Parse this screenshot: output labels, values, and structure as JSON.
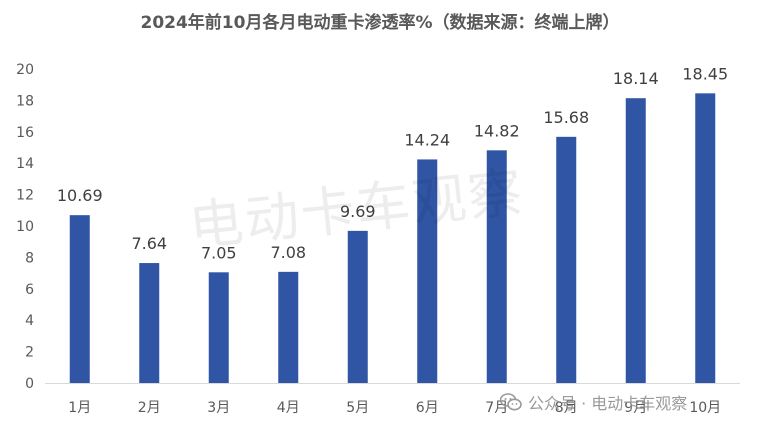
{
  "chart_data": {
    "type": "bar",
    "title": "2024年前10月各月电动重卡渗透率%（数据来源：终端上牌）",
    "categories": [
      "1月",
      "2月",
      "3月",
      "4月",
      "5月",
      "6月",
      "7月",
      "8月",
      "9月",
      "10月"
    ],
    "values": [
      10.69,
      7.64,
      7.05,
      7.08,
      9.69,
      14.24,
      14.82,
      15.68,
      18.14,
      18.45
    ],
    "data_labels": [
      "10.69",
      "7.64",
      "7.05",
      "7.08",
      "9.69",
      "14.24",
      "14.82",
      "15.68",
      "18.14",
      "18.45"
    ],
    "y_ticks": [
      "0",
      "2",
      "4",
      "6",
      "8",
      "10",
      "12",
      "14",
      "16",
      "18",
      "20"
    ],
    "ylim": [
      0,
      20
    ],
    "grid": false,
    "legend": "none",
    "bar_color": "#2F55A4"
  },
  "watermark": {
    "text": "电动卡车观察",
    "footer_text": "公众号 · 电动卡车观察",
    "icon": "wechat-icon"
  }
}
